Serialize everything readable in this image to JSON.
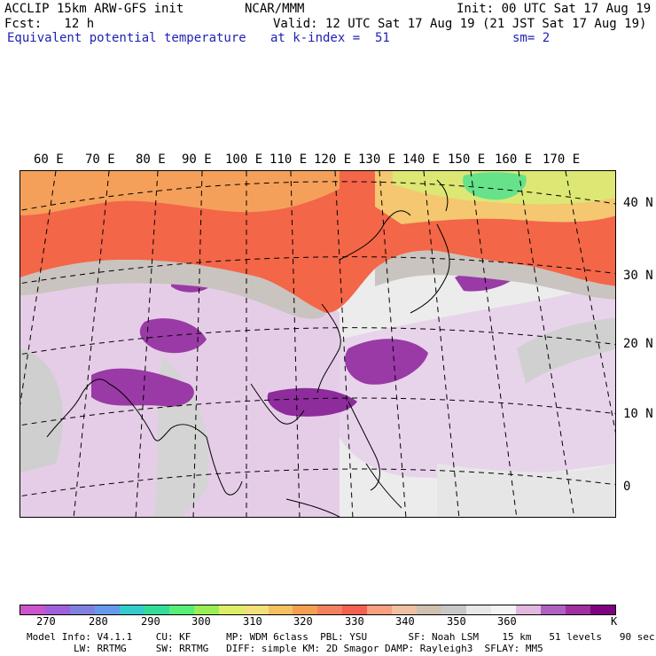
{
  "header": {
    "model_line": "ACCLIP 15km ARW-GFS init",
    "center": "NCAR/MMM",
    "init": "Init: 00 UTC Sat 17 Aug 19",
    "fcst": "Fcst:   12 h",
    "valid": "Valid: 12 UTC Sat 17 Aug 19 (21 JST Sat 17 Aug 19)",
    "field": "Equivalent potential temperature",
    "level": "at k-index =  51",
    "smooth": "sm= 2"
  },
  "map": {
    "lon_labels": [
      "60 E",
      "70 E",
      "80 E",
      "90 E",
      "100 E",
      "110 E",
      "120 E",
      "130 E",
      "140 E",
      "150 E",
      "160 E",
      "170 E"
    ],
    "lat_labels": [
      "40 N",
      "30 N",
      "20 N",
      "10 N",
      "0"
    ]
  },
  "colorbar": {
    "colors": [
      "#cc55cc",
      "#a060dd",
      "#8080e0",
      "#6699ee",
      "#33cccc",
      "#33dd99",
      "#55ee77",
      "#99ee55",
      "#ddee66",
      "#f2e07a",
      "#f5c060",
      "#f5a050",
      "#f58060",
      "#f56050",
      "#f8a080",
      "#f0c0a0",
      "#d0c0b0",
      "#c8c8c8",
      "#e8e8e8",
      "#f4f4f4",
      "#e0b8e0",
      "#b060c0",
      "#a030a0",
      "#800080"
    ],
    "ticks": [
      "270",
      "280",
      "290",
      "300",
      "310",
      "320",
      "330",
      "340",
      "350",
      "360"
    ],
    "unit": "K"
  },
  "footer": {
    "line1": "Model Info: V4.1.1    CU: KF      MP: WDM 6class  PBL: YSU       SF: Noah LSM    15 km   51 levels   90 sec",
    "line2": "        LW: RRTMG     SW: RRTMG   DIFF: simple KM: 2D Smagor DAMP: Rayleigh3  SFLAY: MM5"
  }
}
